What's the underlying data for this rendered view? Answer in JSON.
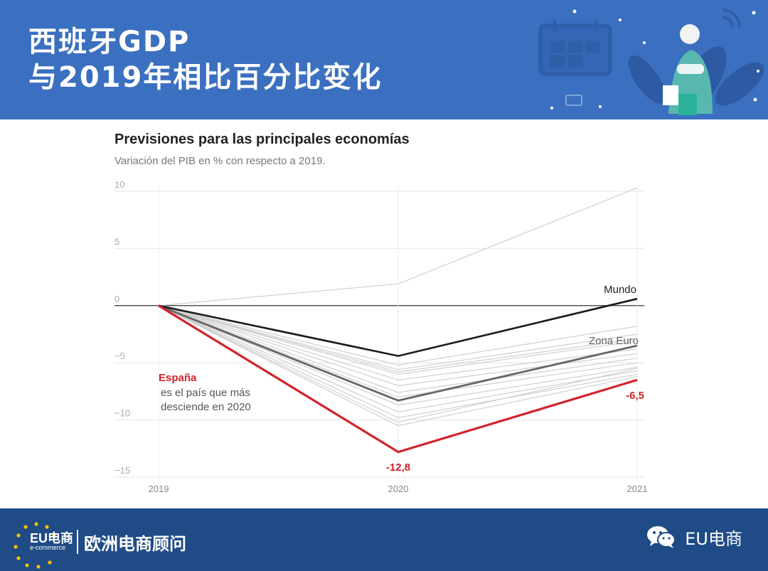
{
  "header": {
    "title_line1": "西班牙GDP",
    "title_line2": "与2019年相比百分比变化"
  },
  "footer": {
    "logo_text": "EU电商",
    "logo_sub": "e-commerce",
    "brand_name": "欧洲电商顾问",
    "wechat_label": "EU电商"
  },
  "colors": {
    "header_bg": "#3b6fc0",
    "footer_bg": "#1f4b86",
    "spain": "#d2232a",
    "world": "#1a1a1a",
    "euro": "#666666",
    "others": "#cfcfcf"
  },
  "chart_data": {
    "type": "line",
    "title": "Previsiones para las principales economías",
    "subtitle": "Variación del PIB en % con respecto a 2019.",
    "x": [
      "2019",
      "2020",
      "2021"
    ],
    "ylim": [
      -15,
      10
    ],
    "yticks": [
      10,
      5,
      0,
      -5,
      -10,
      -15
    ],
    "ytick_labels": [
      "10",
      "5",
      "0",
      "−5",
      "−10",
      "−15"
    ],
    "grid": true,
    "series": [
      {
        "name": "España",
        "role": "highlight",
        "values": [
          0,
          -12.8,
          -6.5
        ]
      },
      {
        "name": "Mundo",
        "role": "world",
        "values": [
          0,
          -4.4,
          0.6
        ]
      },
      {
        "name": "Zona Euro",
        "role": "euro",
        "values": [
          0,
          -8.3,
          -3.5
        ]
      },
      {
        "role": "other",
        "values": [
          0,
          1.9,
          10.3
        ]
      },
      {
        "role": "other",
        "values": [
          0,
          -5.2,
          -1.8
        ]
      },
      {
        "role": "other",
        "values": [
          0,
          -5.6,
          -2.5
        ]
      },
      {
        "role": "other",
        "values": [
          0,
          -5.8,
          -2.9
        ]
      },
      {
        "role": "other",
        "values": [
          0,
          -6.0,
          -3.1
        ]
      },
      {
        "role": "other",
        "values": [
          0,
          -6.5,
          -3.8
        ]
      },
      {
        "role": "other",
        "values": [
          0,
          -7.0,
          -4.2
        ]
      },
      {
        "role": "other",
        "values": [
          0,
          -7.6,
          -4.6
        ]
      },
      {
        "role": "other",
        "values": [
          0,
          -8.0,
          -5.0
        ]
      },
      {
        "role": "other",
        "values": [
          0,
          -8.7,
          -5.4
        ]
      },
      {
        "role": "other",
        "values": [
          0,
          -9.3,
          -5.7
        ]
      },
      {
        "role": "other",
        "values": [
          0,
          -9.8,
          -6.0
        ]
      },
      {
        "role": "other",
        "values": [
          0,
          -10.2,
          -5.5
        ]
      },
      {
        "role": "other",
        "values": [
          0,
          -10.5,
          -6.2
        ]
      }
    ],
    "labels": {
      "mundo": "Mundo",
      "euro": "Zona Euro",
      "spain_name": "España",
      "spain_note_1": "es el país que más",
      "spain_note_2": "desciende en 2020",
      "spain_2020": "-12,8",
      "spain_2021": "-6,5"
    }
  }
}
